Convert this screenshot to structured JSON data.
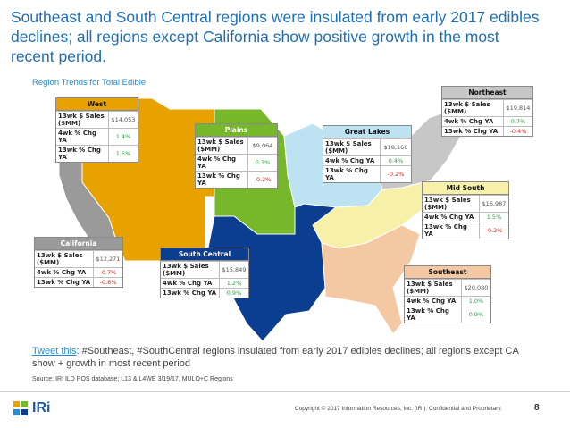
{
  "title": "Southeast and South Central regions were insulated from early 2017 edibles declines; all regions except California show positive growth in the most recent period.",
  "subtitle": "Region Trends for Total Edible",
  "regions": {
    "west": {
      "name": "West",
      "header_color": "#e8a200",
      "rows": [
        {
          "label": "13wk $ Sales ($MM)",
          "value": "$14,053",
          "tone": "neu"
        },
        {
          "label": "4wk % Chg YA",
          "value": "1.4%",
          "tone": "pos"
        },
        {
          "label": "13wk % Chg YA",
          "value": "1.5%",
          "tone": "pos"
        }
      ]
    },
    "plains": {
      "name": "Plains",
      "header_color": "#76b82a",
      "rows": [
        {
          "label": "13wk $ Sales ($MM)",
          "value": "$9,064",
          "tone": "neu"
        },
        {
          "label": "4wk % Chg YA",
          "value": "0.3%",
          "tone": "pos"
        },
        {
          "label": "13wk % Chg YA",
          "value": "-0.2%",
          "tone": "neg"
        }
      ]
    },
    "great_lakes": {
      "name": "Great Lakes",
      "header_color": "#bde3f2",
      "rows": [
        {
          "label": "13wk $ Sales ($MM)",
          "value": "$18,166",
          "tone": "neu"
        },
        {
          "label": "4wk % Chg YA",
          "value": "0.4%",
          "tone": "pos"
        },
        {
          "label": "13wk % Chg YA",
          "value": "-0.2%",
          "tone": "neg"
        }
      ]
    },
    "northeast": {
      "name": "Northeast",
      "header_color": "#c7c7c7",
      "rows": [
        {
          "label": "13wk $ Sales ($MM)",
          "value": "$19,814",
          "tone": "neu"
        },
        {
          "label": "4wk % Chg YA",
          "value": "0.7%",
          "tone": "pos"
        },
        {
          "label": "13wk % Chg YA",
          "value": "-0.4%",
          "tone": "neg"
        }
      ]
    },
    "mid_south": {
      "name": "Mid South",
      "header_color": "#f6f0a8",
      "rows": [
        {
          "label": "13wk $ Sales ($MM)",
          "value": "$16,987",
          "tone": "neu"
        },
        {
          "label": "4wk % Chg YA",
          "value": "1.5%",
          "tone": "pos"
        },
        {
          "label": "13wk % Chg YA",
          "value": "-0.2%",
          "tone": "neg"
        }
      ]
    },
    "california": {
      "name": "California",
      "header_color": "#9a9a9a",
      "rows": [
        {
          "label": "13wk $ Sales ($MM)",
          "value": "$12,271",
          "tone": "neu"
        },
        {
          "label": "4wk % Chg YA",
          "value": "-0.7%",
          "tone": "neg"
        },
        {
          "label": "13wk % Chg YA",
          "value": "-0.8%",
          "tone": "neg"
        }
      ]
    },
    "south_central": {
      "name": "South Central",
      "header_color": "#0b3d91",
      "rows": [
        {
          "label": "13wk $ Sales ($MM)",
          "value": "$15,849",
          "tone": "neu"
        },
        {
          "label": "4wk % Chg YA",
          "value": "1.2%",
          "tone": "pos"
        },
        {
          "label": "13wk % Chg YA",
          "value": "0.9%",
          "tone": "pos"
        }
      ]
    },
    "southeast": {
      "name": "Southeast",
      "header_color": "#f5c8a4",
      "rows": [
        {
          "label": "13wk $ Sales ($MM)",
          "value": "$20,080",
          "tone": "neu"
        },
        {
          "label": "4wk % Chg YA",
          "value": "1.0%",
          "tone": "pos"
        },
        {
          "label": "13wk % Chg YA",
          "value": "0.9%",
          "tone": "pos"
        }
      ]
    }
  },
  "tweet": {
    "link": "Tweet this",
    "text": ": #Southeast, #SouthCentral regions insulated from early 2017 edibles declines; all regions except CA show + growth in most recent period"
  },
  "source": "Source: IRI ILD POS database; L13 & L4WE 3/19/17, MULO+C Regions",
  "footer": {
    "logo_text": "IRi",
    "copyright": "Copyright © 2017 Information Resources, Inc. (IRI). Confidential and Proprietary.",
    "page": "8"
  },
  "colors": {
    "title": "#1f6fb5",
    "positive": "#2ea043",
    "negative": "#d4251c"
  }
}
